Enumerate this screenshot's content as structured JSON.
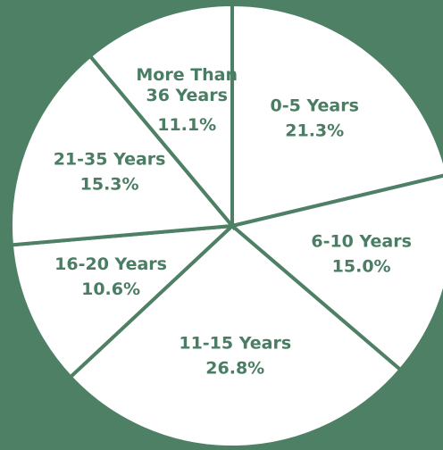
{
  "chart_data": {
    "type": "pie",
    "categories": [
      "0-5 Years",
      "6-10 Years",
      "11-15 Years",
      "16-20 Years",
      "21-35 Years",
      "More Than 36 Years"
    ],
    "values": [
      21.3,
      15.0,
      26.8,
      10.6,
      15.3,
      11.1
    ],
    "value_labels": [
      "21.3%",
      "15.0%",
      "26.8%",
      "10.6%",
      "15.3%",
      "11.1%"
    ],
    "color": "#ffffff"
  }
}
